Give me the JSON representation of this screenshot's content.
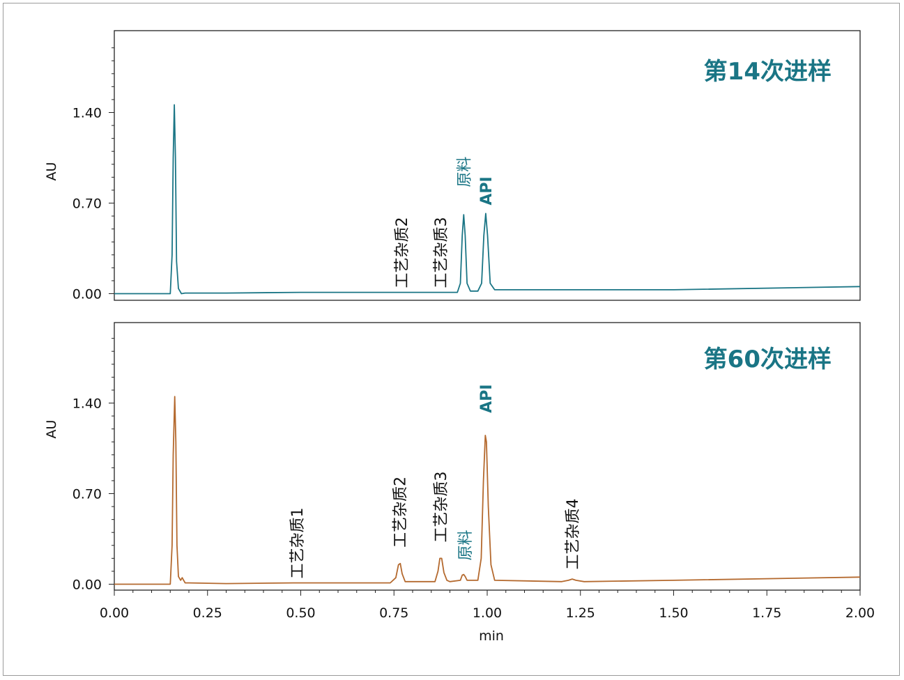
{
  "colors": {
    "teal": "#1a7585",
    "orange": "#b4692e",
    "axis": "#222222",
    "label_dark": "#111111"
  },
  "chart_data": [
    {
      "type": "line",
      "title": "第14次进样",
      "ylabel": "AU",
      "xlabel": "",
      "xlim": [
        0.0,
        2.0
      ],
      "ylim": [
        -0.05,
        2.05
      ],
      "yticks": [
        "0.00",
        "0.70",
        "1.40"
      ],
      "ytick_values": [
        0.0,
        0.7,
        1.4
      ],
      "series": [
        {
          "color": "#1a7585",
          "x": [
            0.0,
            0.15,
            0.155,
            0.158,
            0.161,
            0.164,
            0.167,
            0.172,
            0.18,
            0.19,
            0.3,
            0.5,
            0.7,
            0.92,
            0.928,
            0.933,
            0.937,
            0.941,
            0.946,
            0.955,
            0.975,
            0.985,
            0.991,
            0.996,
            1.001,
            1.008,
            1.02,
            1.5,
            2.0
          ],
          "y": [
            0.0,
            0.0,
            0.3,
            1.05,
            1.46,
            1.05,
            0.25,
            0.04,
            0.0,
            0.005,
            0.005,
            0.01,
            0.01,
            0.01,
            0.08,
            0.45,
            0.61,
            0.45,
            0.08,
            0.02,
            0.02,
            0.08,
            0.45,
            0.62,
            0.45,
            0.08,
            0.03,
            0.03,
            0.055
          ]
        }
      ],
      "annotations": [
        {
          "text": "工艺杂质2",
          "x": 0.77,
          "y": 0.0,
          "color": "#111111"
        },
        {
          "text": "工艺杂质3",
          "x": 0.875,
          "y": 0.0,
          "color": "#111111"
        },
        {
          "text": "原料",
          "x": 0.937,
          "y": 0.78,
          "color": "#1a7585"
        },
        {
          "text": "API",
          "x": 0.996,
          "y": 0.64,
          "color": "#1a7585"
        }
      ]
    },
    {
      "type": "line",
      "title": "第60次进样",
      "ylabel": "AU",
      "xlabel": "min",
      "xlim": [
        0.0,
        2.0
      ],
      "ylim": [
        -0.05,
        2.05
      ],
      "yticks": [
        "0.00",
        "0.70",
        "1.40"
      ],
      "ytick_values": [
        0.0,
        0.7,
        1.4
      ],
      "xticks": [
        "0.00",
        "0.25",
        "0.50",
        "0.75",
        "1.00",
        "1.25",
        "1.50",
        "1.75",
        "2.00"
      ],
      "xtick_values": [
        0.0,
        0.25,
        0.5,
        0.75,
        1.0,
        1.25,
        1.5,
        1.75,
        2.0
      ],
      "series": [
        {
          "color": "#b4692e",
          "x": [
            0.0,
            0.15,
            0.155,
            0.158,
            0.162,
            0.165,
            0.168,
            0.172,
            0.178,
            0.182,
            0.186,
            0.19,
            0.2,
            0.3,
            0.48,
            0.5,
            0.74,
            0.755,
            0.762,
            0.767,
            0.772,
            0.78,
            0.79,
            0.86,
            0.868,
            0.873,
            0.878,
            0.884,
            0.892,
            0.9,
            0.928,
            0.933,
            0.937,
            0.941,
            0.946,
            0.975,
            0.984,
            0.99,
            0.995,
            0.998,
            1.003,
            1.01,
            1.02,
            1.2,
            1.218,
            1.228,
            1.238,
            1.26,
            1.5,
            2.0
          ],
          "y": [
            0.0,
            0.0,
            0.3,
            1.0,
            1.45,
            1.1,
            0.3,
            0.06,
            0.03,
            0.05,
            0.03,
            0.01,
            0.01,
            0.005,
            0.01,
            0.01,
            0.01,
            0.05,
            0.15,
            0.16,
            0.08,
            0.02,
            0.02,
            0.02,
            0.1,
            0.2,
            0.2,
            0.09,
            0.03,
            0.02,
            0.03,
            0.07,
            0.075,
            0.06,
            0.03,
            0.03,
            0.2,
            0.8,
            1.15,
            1.1,
            0.6,
            0.15,
            0.03,
            0.02,
            0.03,
            0.04,
            0.03,
            0.02,
            0.03,
            0.055
          ]
        }
      ],
      "annotations": [
        {
          "text": "工艺杂质1",
          "x": 0.49,
          "y": 0.0,
          "color": "#111111"
        },
        {
          "text": "工艺杂质2",
          "x": 0.765,
          "y": 0.24,
          "color": "#111111"
        },
        {
          "text": "工艺杂质3",
          "x": 0.875,
          "y": 0.28,
          "color": "#111111"
        },
        {
          "text": "原料",
          "x": 0.94,
          "y": 0.14,
          "color": "#1a7585"
        },
        {
          "text": "API",
          "x": 0.996,
          "y": 1.28,
          "color": "#1a7585"
        },
        {
          "text": "工艺杂质4",
          "x": 1.228,
          "y": 0.07,
          "color": "#111111"
        }
      ]
    }
  ]
}
